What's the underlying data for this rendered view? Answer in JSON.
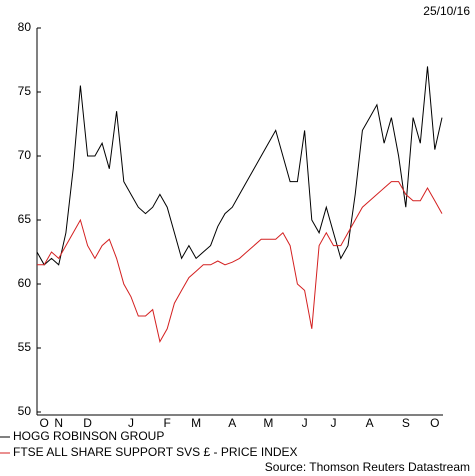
{
  "chart_data": {
    "type": "line",
    "date": "25/10/16",
    "source": "Source: Thomson Reuters Datastream",
    "categories": [
      null,
      "O",
      null,
      "N",
      null,
      null,
      null,
      "D",
      null,
      null,
      null,
      null,
      null,
      "J",
      null,
      null,
      null,
      null,
      "F",
      null,
      null,
      null,
      "M",
      null,
      null,
      null,
      null,
      "A",
      null,
      null,
      null,
      null,
      "M",
      null,
      null,
      null,
      null,
      "J",
      null,
      null,
      null,
      "J",
      null,
      null,
      null,
      null,
      "A",
      null,
      null,
      null,
      null,
      "S",
      null,
      null,
      null,
      "O",
      null
    ],
    "series": [
      {
        "name": "HOGG ROBINSON GROUP",
        "color": "#000000",
        "values": [
          62.5,
          61.5,
          62,
          61.5,
          64,
          69,
          75.5,
          70,
          70,
          71,
          69,
          73.5,
          68,
          67,
          66,
          65.5,
          66,
          67,
          66,
          64,
          62,
          63,
          62,
          62.5,
          63,
          64.5,
          65.5,
          66,
          67,
          68,
          69,
          70,
          71,
          72,
          70,
          68,
          68,
          72,
          65,
          64,
          66,
          64,
          62,
          63,
          67,
          72,
          73,
          74,
          71,
          73,
          70,
          66,
          73,
          71,
          77,
          70.5,
          73
        ]
      },
      {
        "name": "FTSE ALL SHARE SUPPORT SVS £ - PRICE INDEX",
        "color": "#d42020",
        "values": [
          61.5,
          61.5,
          62.5,
          62,
          63,
          64,
          65,
          63,
          62,
          63,
          63.5,
          62,
          60,
          59,
          57.5,
          57.5,
          58,
          55.5,
          56.5,
          58.5,
          59.5,
          60.5,
          61,
          61.5,
          61.5,
          61.8,
          61.5,
          61.7,
          62,
          62.5,
          63,
          63.5,
          63.5,
          63.5,
          64,
          63,
          60,
          59.5,
          56.5,
          63,
          64,
          63,
          63,
          64,
          65,
          66,
          66.5,
          67,
          67.5,
          68,
          68,
          67,
          66.5,
          66.5,
          67.5,
          66.5,
          65.5
        ]
      }
    ],
    "ylim": [
      50,
      80
    ],
    "yticks": [
      50,
      55,
      60,
      65,
      70,
      75,
      80
    ]
  }
}
